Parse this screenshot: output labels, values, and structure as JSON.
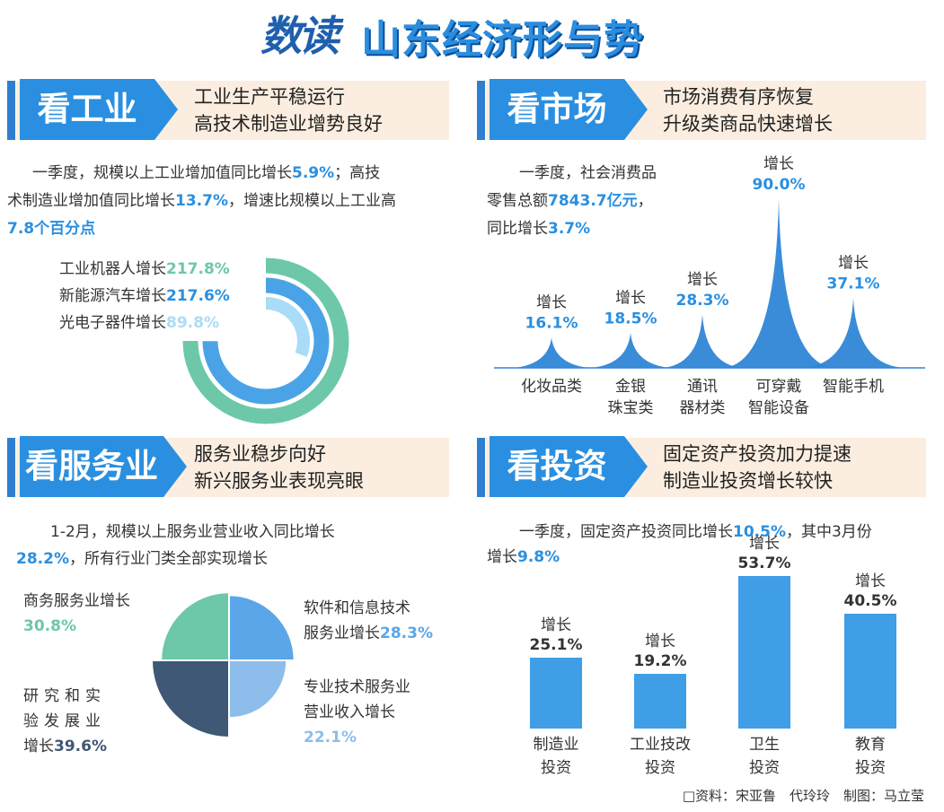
{
  "page": {
    "title_script": "数读",
    "title_main": "山东经济形与势",
    "credit": "□资料：宋亚鲁　代玲玲　制图：马立莹"
  },
  "colors": {
    "accent": "#2a8fe0",
    "header_bg": "#fbeee0",
    "teal": "#6cc8a9",
    "navy": "#3f5876",
    "light_blue": "#8dbdea"
  },
  "industry": {
    "header": "看工业",
    "subtitle_1": "工业生产平稳运行",
    "subtitle_2": "高技术制造业增势良好",
    "para_1a": "一季度，规模以上工业增加值同比增长",
    "para_1b": "5.9%",
    "para_1c": "；高技",
    "para_2a": "术制造业增加值同比增长",
    "para_2b": "13.7%",
    "para_2c": "，增速比规模以上工业高",
    "para_3": "7.8个百分点"
  },
  "market": {
    "header": "看市场",
    "subtitle_1": "市场消费有序恢复",
    "subtitle_2": "升级类商品快速增长",
    "para_1": "一季度，社会消费品",
    "para_2a": "零售总额",
    "para_2b": "7843.7亿元",
    "para_2c": "，",
    "para_3a": "同比增长",
    "para_3b": "3.7%"
  },
  "services": {
    "header": "看服务业",
    "subtitle_1": "服务业稳步向好",
    "subtitle_2": "新兴服务业表现亮眼",
    "para_1": "1-2月，规模以上服务业营业收入同比增长",
    "para_2a": "28.2%",
    "para_2b": "，所有行业门类全部实现增长",
    "label_a_1": "商务服务业增长",
    "label_b_1": "软件和信息技术",
    "label_b_2": "服务业增长",
    "label_c_1": "专业技术服务业",
    "label_c_2": "营业收入增长",
    "label_d_1": "研究和实",
    "label_d_2": "验发展业",
    "label_d_3": "增长"
  },
  "investment": {
    "header": "看投资",
    "subtitle_1": "固定资产投资加力提速",
    "subtitle_2": "制造业投资增长较快",
    "para_1a": "一季度，固定资产投资同比增长",
    "para_1b": "10.5%",
    "para_1c": "，其中3月份",
    "para_2a": "增长",
    "para_2b": "9.8%"
  },
  "chart_data": [
    {
      "type": "radial-bar",
      "series": [
        {
          "name": "工业机器人增长",
          "value": 217.8,
          "label": "217.8%",
          "color": "#6cc8a9"
        },
        {
          "name": "新能源汽车增长",
          "value": 217.6,
          "label": "217.6%",
          "color": "#4aa3e6"
        },
        {
          "name": "光电子器件增长",
          "value": 89.8,
          "label": "89.8%",
          "color": "#a9dcf6"
        }
      ]
    },
    {
      "type": "peak",
      "prefix": "增长",
      "categories": [
        "化妆品类",
        "金银珠宝类",
        "通讯器材类",
        "可穿戴智能设备",
        "智能手机"
      ],
      "category_lines": [
        [
          "化妆品类"
        ],
        [
          "金银",
          "珠宝类"
        ],
        [
          "通讯",
          "器材类"
        ],
        [
          "可穿戴",
          "智能设备"
        ],
        [
          "智能手机"
        ]
      ],
      "values": [
        16.1,
        18.5,
        28.3,
        90.0,
        37.1
      ],
      "labels": [
        "16.1%",
        "18.5%",
        "28.3%",
        "90.0%",
        "37.1%"
      ],
      "color": "#2f86d6"
    },
    {
      "type": "pie",
      "series": [
        {
          "name": "软件和信息技术服务业增长",
          "value": 28.3,
          "label": "28.3%",
          "color": "#5aa6e8"
        },
        {
          "name": "专业技术服务业营业收入增长",
          "value": 22.1,
          "label": "22.1%",
          "color": "#8dbdea"
        },
        {
          "name": "研究和实验发展业增长",
          "value": 39.6,
          "label": "39.6%",
          "color": "#3f5876"
        },
        {
          "name": "商务服务业增长",
          "value": 30.8,
          "label": "30.8%",
          "color": "#6cc8a9"
        }
      ]
    },
    {
      "type": "bar",
      "prefix": "增长",
      "categories": [
        "制造业投资",
        "工业技改投资",
        "卫生投资",
        "教育投资"
      ],
      "category_lines": [
        [
          "制造业",
          "投资"
        ],
        [
          "工业技改",
          "投资"
        ],
        [
          "卫生",
          "投资"
        ],
        [
          "教育",
          "投资"
        ]
      ],
      "values": [
        25.1,
        19.2,
        53.7,
        40.5
      ],
      "labels": [
        "25.1%",
        "19.2%",
        "53.7%",
        "40.5%"
      ],
      "ylim": [
        0,
        60
      ]
    }
  ]
}
